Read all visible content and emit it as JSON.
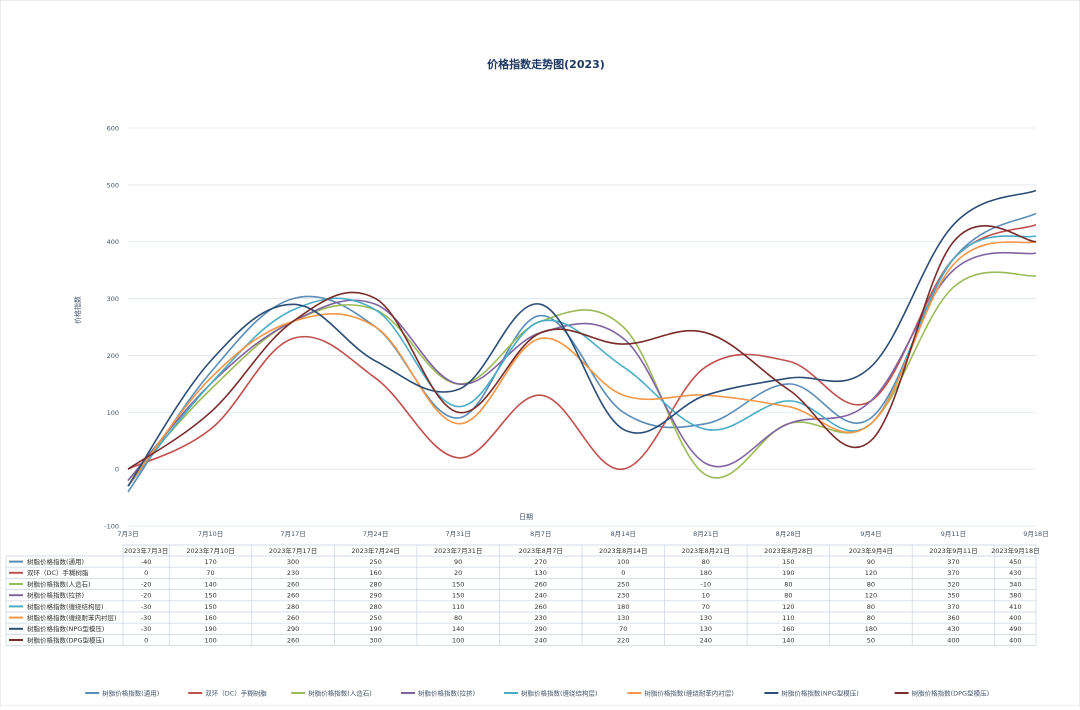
{
  "chart_data": {
    "type": "line",
    "title": "价格指数走势图(2023)",
    "xlabel": "日期",
    "ylabel": "价格指数",
    "ylim": [
      -100,
      600
    ],
    "yticks": [
      -100,
      0,
      100,
      200,
      300,
      400,
      500,
      600
    ],
    "grid": true,
    "legend": "bottom",
    "x_tick_labels": [
      "7月3日",
      "7月10日",
      "7月17日",
      "7月24日",
      "7月31日",
      "8月7日",
      "8月14日",
      "8月21日",
      "8月28日",
      "9月4日",
      "9月11日",
      "9月18日"
    ],
    "table_headers": [
      "2023年7月3日",
      "2023年7月10日",
      "2023年7月17日",
      "2023年7月24日",
      "2023年7月31日",
      "2023年8月7日",
      "2023年8月14日",
      "2023年8月21日",
      "2023年8月28日",
      "2023年9月4日",
      "2023年9月11日",
      "2023年9月18日"
    ],
    "series": [
      {
        "name": "树脂价格指数(通用)",
        "color": "#5b8db8",
        "values": [
          -40,
          170,
          300,
          250,
          90,
          270,
          100,
          80,
          150,
          90,
          370,
          450
        ]
      },
      {
        "name": "双环（DC）手糊树脂",
        "color": "#c0504d",
        "values": [
          0,
          70,
          230,
          160,
          20,
          130,
          0,
          180,
          190,
          120,
          370,
          430
        ]
      },
      {
        "name": "树脂价格指数(人造石)",
        "color": "#9bbb59",
        "values": [
          -20,
          140,
          260,
          280,
          150,
          260,
          250,
          -10,
          80,
          80,
          320,
          340
        ]
      },
      {
        "name": "树脂价格指数(拉挤)",
        "color": "#8064a2",
        "values": [
          -20,
          150,
          260,
          290,
          150,
          240,
          230,
          10,
          80,
          120,
          350,
          380
        ]
      },
      {
        "name": "树脂价格指数(缠绕结构层)",
        "color": "#4bacc6",
        "values": [
          -30,
          150,
          280,
          280,
          110,
          260,
          180,
          70,
          120,
          80,
          370,
          410
        ]
      },
      {
        "name": "树脂价格指数(缠绕耐苯内衬层)",
        "color": "#f79646",
        "values": [
          -30,
          160,
          260,
          250,
          80,
          230,
          130,
          130,
          110,
          80,
          360,
          400
        ]
      },
      {
        "name": "树脂价格指数(NPG型模压)",
        "color": "#2c4d75",
        "values": [
          -30,
          190,
          290,
          190,
          140,
          290,
          70,
          130,
          160,
          180,
          430,
          490
        ]
      },
      {
        "name": "树脂价格指数(DPG型模压)",
        "color": "#772c2a",
        "values": [
          0,
          100,
          260,
          300,
          100,
          240,
          220,
          240,
          140,
          50,
          400,
          400
        ]
      }
    ]
  }
}
